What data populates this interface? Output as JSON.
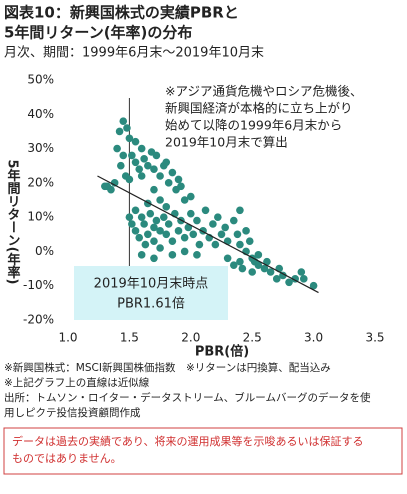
{
  "header": {
    "title_lines": [
      "図表10：新興国株式の実績PBRと",
      "5年間リターン(年率)の分布"
    ],
    "subtitle": "月次、期間：1999年6月末～2019年10月末"
  },
  "chart_data": {
    "type": "scatter",
    "x_label": "PBR(倍)",
    "y_label": "5年間リターン(年率)",
    "color": "#2b8a7e",
    "x": [
      1.3,
      1.32,
      1.35,
      1.38,
      1.4,
      1.42,
      1.45,
      1.48,
      1.5,
      1.45,
      1.43,
      1.47,
      1.5,
      1.52,
      1.55,
      1.55,
      1.58,
      1.6,
      1.62,
      1.65,
      1.6,
      1.68,
      1.7,
      1.72,
      1.75,
      1.78,
      1.8,
      1.82,
      1.85,
      1.88,
      1.9,
      1.92,
      1.95,
      2.0,
      1.7,
      1.65,
      1.75,
      1.8,
      1.5,
      1.52,
      1.55,
      1.55,
      1.58,
      1.6,
      1.62,
      1.63,
      1.65,
      1.67,
      1.7,
      1.7,
      1.72,
      1.75,
      1.75,
      1.78,
      1.8,
      1.82,
      1.85,
      1.87,
      1.9,
      1.92,
      1.95,
      1.98,
      2.0,
      2.02,
      2.05,
      2.07,
      2.1,
      2.12,
      2.15,
      2.18,
      2.2,
      2.22,
      2.25,
      2.28,
      2.3,
      2.35,
      2.38,
      2.4,
      1.6,
      1.7,
      1.85,
      1.95,
      2.05,
      2.3,
      2.35,
      2.4,
      2.42,
      2.45,
      2.5,
      2.5,
      2.52,
      2.55,
      2.55,
      2.6,
      2.62,
      2.65,
      2.7,
      2.72,
      2.75,
      2.8,
      2.85,
      2.9,
      2.92,
      3.0,
      2.48,
      2.45,
      2.4
    ],
    "values": [
      19,
      19,
      18,
      20,
      30,
      35,
      38,
      36,
      33,
      28,
      25,
      22,
      21,
      28,
      32,
      26,
      24,
      30,
      27,
      25,
      22,
      29,
      24,
      28,
      22,
      25,
      26,
      20,
      23,
      18,
      21,
      19,
      15,
      16,
      18,
      14,
      15,
      13,
      10,
      8,
      6,
      12,
      4,
      10,
      8,
      2,
      5,
      11,
      7,
      3,
      9,
      6,
      1,
      10,
      5,
      8,
      3,
      11,
      6,
      9,
      4,
      7,
      11,
      5,
      9,
      2,
      6,
      12,
      4,
      8,
      2,
      10,
      5,
      7,
      3,
      9,
      5,
      2,
      -1,
      -2,
      -1,
      0,
      -1,
      -2,
      -4,
      -3,
      -5,
      0,
      -2,
      -6,
      -3,
      -4,
      -1,
      -5,
      -3,
      -6,
      -8,
      -5,
      -7,
      -9,
      -8,
      -6,
      -8,
      -10,
      3,
      6,
      12
    ],
    "xlim": [
      1.0,
      3.5
    ],
    "xticks": [
      {
        "value": 1,
        "label": "1.0"
      },
      1.5,
      {
        "value": 2,
        "label": "2.0"
      },
      2.5,
      {
        "value": 3,
        "label": "3.0"
      },
      3.5
    ],
    "ylim": [
      -20,
      50
    ],
    "yticks": [
      {
        "value": -20,
        "label": "-20%"
      },
      {
        "value": -10,
        "label": "-10%"
      },
      {
        "value": 0,
        "label": "0%"
      },
      {
        "value": 10,
        "label": "10%"
      },
      {
        "value": 20,
        "label": "20%"
      },
      {
        "value": 30,
        "label": "30%"
      },
      {
        "value": 40,
        "label": "40%"
      },
      {
        "value": 50,
        "label": "50%"
      }
    ],
    "vline_x": 1.5,
    "trend": {
      "x": [
        1.24,
        3.04
      ],
      "y": [
        22,
        -12
      ]
    },
    "annotation_lines": [
      "※アジア通貨危機やロシア危機後、",
      "新興国経済が本格的に立ち上がり",
      "始めて以降の1999年6月末から",
      "2019年10月末で算出"
    ],
    "callout_lines": [
      "2019年10月末時点",
      "PBR1.61倍"
    ]
  },
  "notes": [
    "※新興国株式：MSCI新興国株価指数　※リターンは円換算、配当込み",
    "※上記グラフ上の直線は近似線",
    "出所：トムソン・ロイター・データストリーム、ブルームバーグのデータを使",
    "用しピクテ投信投資顧問作成"
  ],
  "disclaimer_lines": [
    "データは過去の実績であり、将来の運用成果等を示唆あるいは保証する",
    "ものではありません。"
  ]
}
